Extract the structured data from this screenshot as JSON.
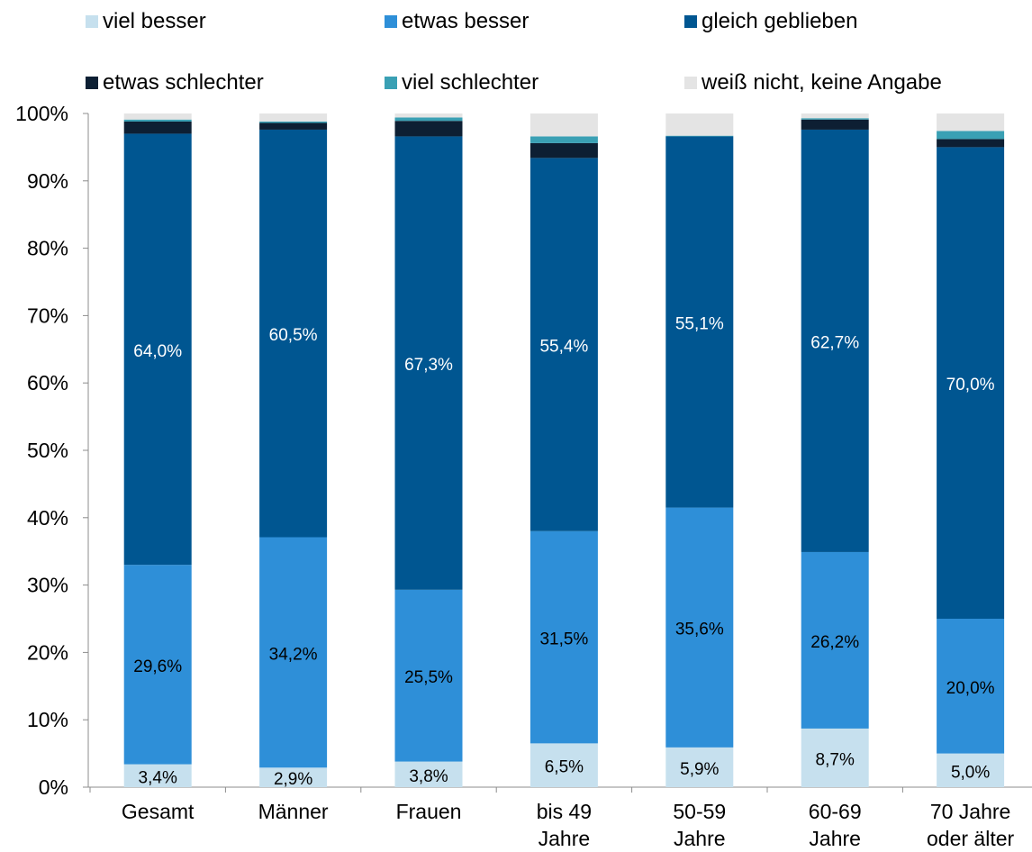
{
  "chart_data": {
    "type": "bar",
    "stacked": true,
    "y_axis": {
      "ticks": [
        "0%",
        "10%",
        "20%",
        "30%",
        "40%",
        "50%",
        "60%",
        "70%",
        "80%",
        "90%",
        "100%"
      ],
      "ylim": [
        0,
        100
      ]
    },
    "categories": [
      [
        "Gesamt"
      ],
      [
        "Männer"
      ],
      [
        "Frauen"
      ],
      [
        "bis 49",
        "Jahre"
      ],
      [
        "50-59",
        "Jahre"
      ],
      [
        "60-69",
        "Jahre"
      ],
      [
        "70 Jahre",
        "oder älter"
      ]
    ],
    "series": [
      {
        "name": "viel besser",
        "color": "#c6e0ee",
        "label_color": "#000000",
        "values": [
          3.4,
          2.9,
          3.8,
          6.5,
          5.9,
          8.7,
          5.0
        ],
        "labels": [
          "3,4%",
          "2,9%",
          "3,8%",
          "6,5%",
          "5,9%",
          "8,7%",
          "5,0%"
        ]
      },
      {
        "name": "etwas besser",
        "color": "#2e8fd8",
        "label_color": "#000000",
        "values": [
          29.6,
          34.2,
          25.5,
          31.5,
          35.6,
          26.2,
          20.0
        ],
        "labels": [
          "29,6%",
          "34,2%",
          "25,5%",
          "31,5%",
          "35,6%",
          "26,2%",
          "20,0%"
        ]
      },
      {
        "name": "gleich geblieben",
        "color": "#005691",
        "label_color": "#ffffff",
        "values": [
          64.0,
          60.5,
          67.3,
          55.4,
          55.1,
          62.7,
          70.0
        ],
        "labels": [
          "64,0%",
          "60,5%",
          "67,3%",
          "55,4%",
          "55,1%",
          "62,7%",
          "70,0%"
        ]
      },
      {
        "name": "etwas schlechter",
        "color": "#0d1f33",
        "label_color": "#ffffff",
        "values": [
          1.8,
          1.0,
          2.3,
          2.2,
          0.0,
          1.5,
          1.2
        ],
        "labels": [
          "",
          "",
          "",
          "",
          "",
          "",
          ""
        ]
      },
      {
        "name": "viel schlechter",
        "color": "#3aa0b4",
        "label_color": "#ffffff",
        "values": [
          0.3,
          0.2,
          0.5,
          1.0,
          0.1,
          0.2,
          1.2
        ],
        "labels": [
          "",
          "",
          "",
          "",
          "",
          "",
          ""
        ]
      },
      {
        "name": "weiß nicht, keine Angabe",
        "color": "#e4e4e4",
        "label_color": "#000000",
        "values": [
          0.9,
          1.2,
          0.6,
          3.4,
          3.3,
          0.7,
          2.6
        ],
        "labels": [
          "",
          "",
          "",
          "",
          "",
          "",
          ""
        ]
      }
    ],
    "legend_position": "top",
    "grid": false
  }
}
